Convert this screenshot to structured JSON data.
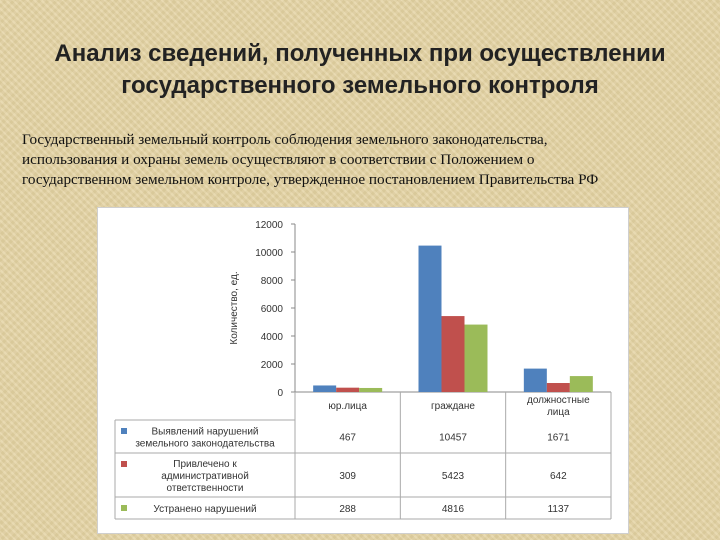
{
  "header": {
    "title_line1": "Анализ сведений, полученных при осуществлении",
    "title_line2": "государственного земельного контроля"
  },
  "intro": {
    "line1": "Государственный  земельный контроль соблюдения земельного законодательства,",
    "line2": "использования  и  охраны  земель  осуществляют  в соответствии  с Положением о",
    "line3": "государственном земельном контроле, утвержденное постановлением Правительства РФ"
  },
  "chart_data": {
    "type": "bar",
    "ylabel": "Количество, ед.",
    "ylim": [
      0,
      12000
    ],
    "yticks": [
      "0",
      "2000",
      "4000",
      "6000",
      "8000",
      "10000",
      "12000"
    ],
    "categories": [
      "юр.лица",
      "граждане",
      "должностные лица"
    ],
    "series": [
      {
        "name": "Выявлений нарушений земельного законодательства",
        "color": "#4f81bd",
        "values": [
          467,
          10457,
          1671
        ],
        "labels": [
          "467",
          "10457",
          "1671"
        ]
      },
      {
        "name": "Привлечено к административной ответственности",
        "color": "#c0504d",
        "values": [
          309,
          5423,
          642
        ],
        "labels": [
          "309",
          "5423",
          "642"
        ]
      },
      {
        "name": "Устранено нарушений",
        "color": "#9bbb59",
        "values": [
          288,
          4816,
          1137
        ],
        "labels": [
          "288",
          "4816",
          "1137"
        ]
      }
    ]
  }
}
